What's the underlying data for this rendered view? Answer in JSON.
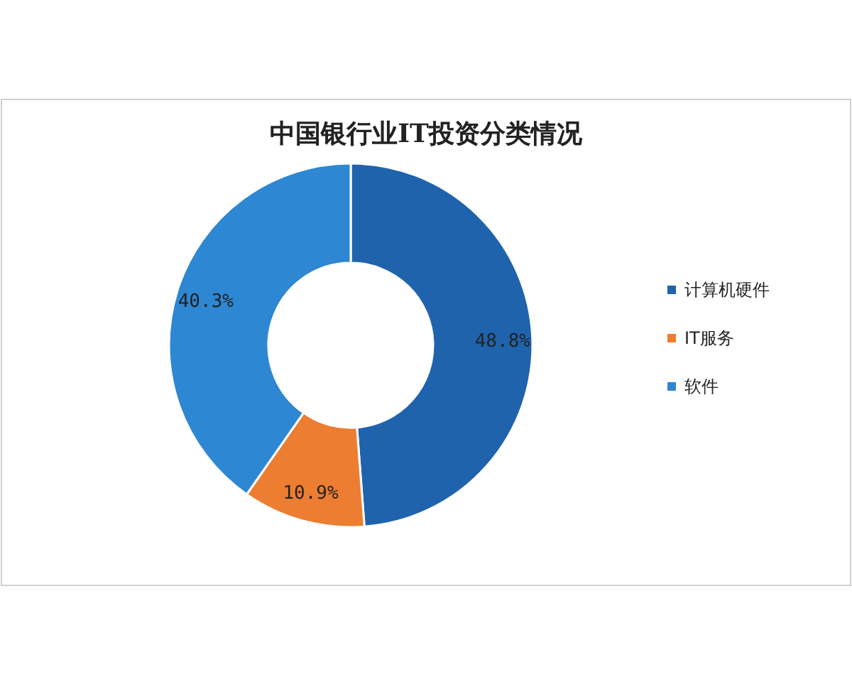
{
  "chart_data": {
    "type": "donut",
    "title": "中国银行业IT投资分类情况",
    "categories": [
      "计算机硬件",
      "IT服务",
      "软件"
    ],
    "values": [
      48.8,
      10.9,
      40.3
    ],
    "colors": [
      "#1f63ad",
      "#ed7d31",
      "#2d87d2"
    ],
    "value_labels": [
      "48.8%",
      "10.9%",
      "40.3%"
    ],
    "legend": "right"
  }
}
